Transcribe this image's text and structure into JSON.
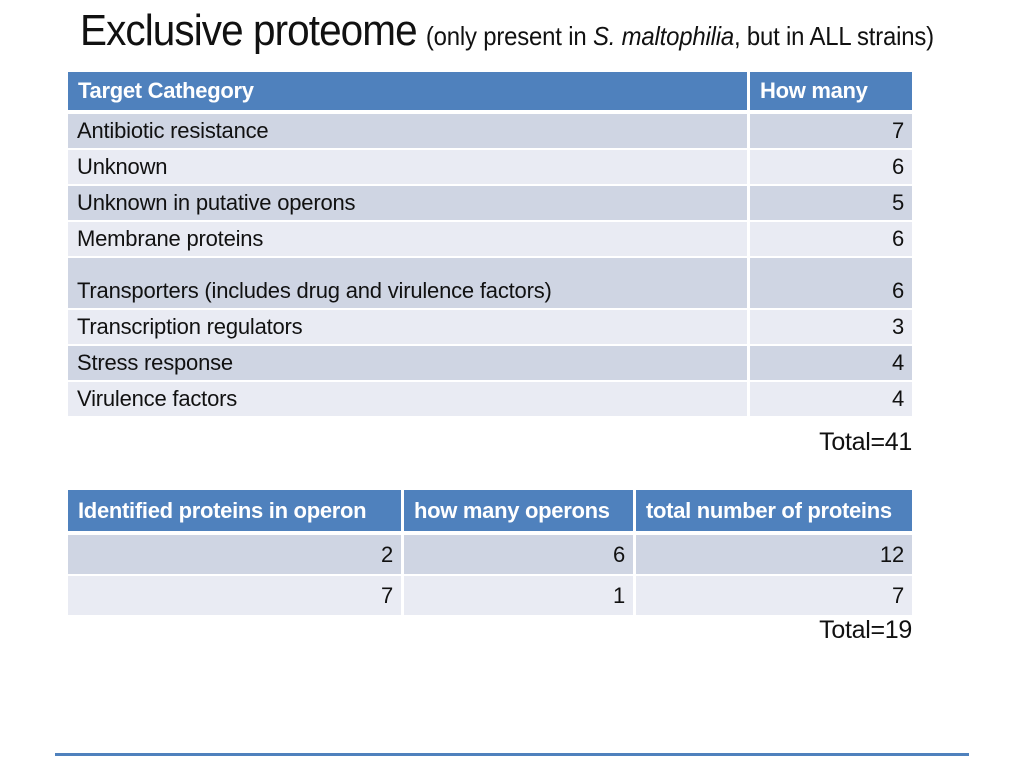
{
  "title": {
    "main": "Exclusive proteome",
    "paren_prefix": "(only present in ",
    "species": "S. maltophilia",
    "paren_suffix": ", but in ALL strains)"
  },
  "table1": {
    "headers": [
      "Target Cathegory",
      "How many"
    ],
    "rows": [
      {
        "category": "Antibiotic resistance",
        "count": "7"
      },
      {
        "category": "Unknown",
        "count": "6"
      },
      {
        "category": "Unknown in putative operons",
        "count": "5"
      },
      {
        "category": "Membrane proteins",
        "count": "6"
      },
      {
        "category": "Transporters (includes drug and virulence factors)",
        "count": "6"
      },
      {
        "category": "Transcription regulators",
        "count": "3"
      },
      {
        "category": "Stress response",
        "count": "4"
      },
      {
        "category": "Virulence factors",
        "count": "4"
      }
    ],
    "total": "Total=41"
  },
  "table2": {
    "headers": [
      "Identified proteins in operon",
      "how many operons",
      "total number of proteins"
    ],
    "rows": [
      {
        "proteins": "2",
        "operons": "6",
        "total": "12"
      },
      {
        "proteins": "7",
        "operons": "1",
        "total": "7"
      }
    ],
    "total": "Total=19"
  },
  "colors": {
    "header_blue": "#4f81bd",
    "band_dark": "#cfd5e3",
    "band_light": "#e9ebf3",
    "footer_line": "#4f81bd",
    "text": "#111111",
    "background": "#ffffff"
  }
}
